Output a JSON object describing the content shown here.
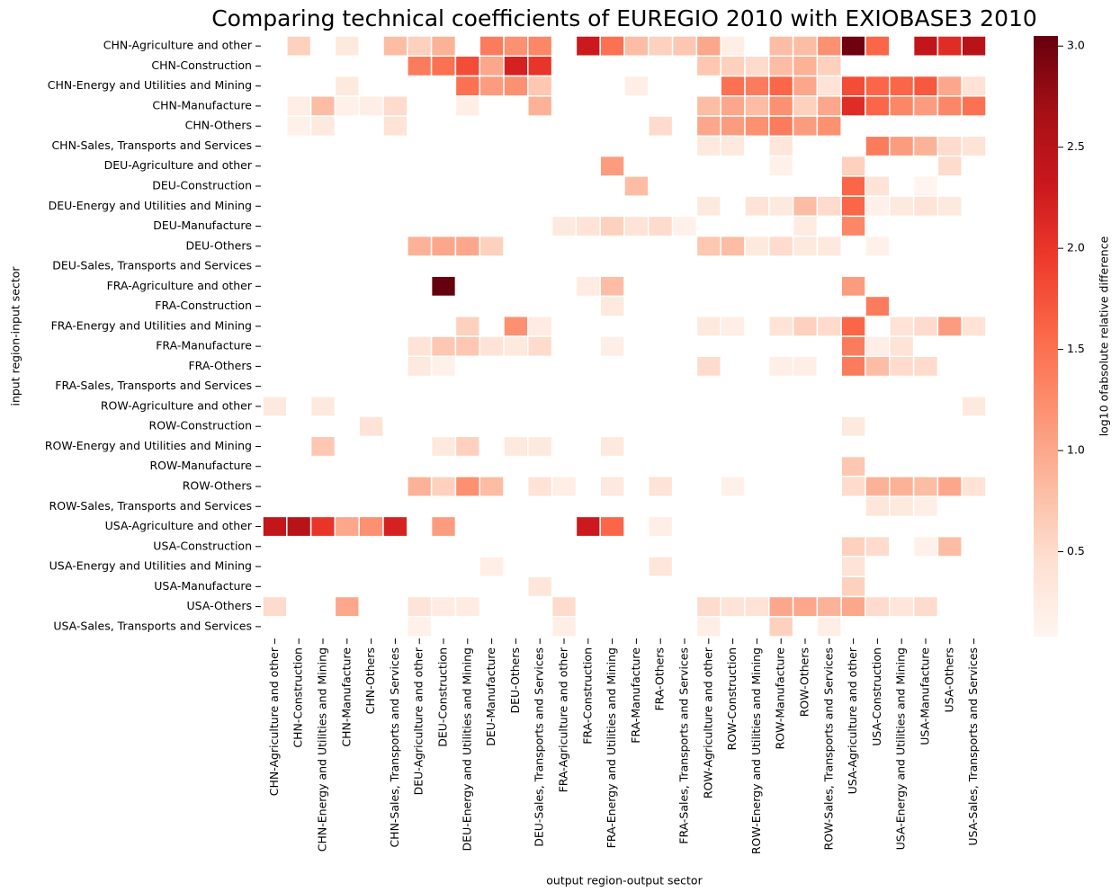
{
  "chart_data": {
    "type": "heatmap",
    "title": "Comparing technical coefficients of EUREGIO 2010 with EXIOBASE3 2010",
    "x_label": "output region-output sector",
    "y_label": "input region-input sector",
    "colorbar_label": "log10 ofabsolute relative difference",
    "categories": [
      "CHN-Agriculture and other",
      "CHN-Construction",
      "CHN-Energy and Utilities and Mining",
      "CHN-Manufacture",
      "CHN-Others",
      "CHN-Sales, Transports and Services",
      "DEU-Agriculture and other",
      "DEU-Construction",
      "DEU-Energy and Utilities and Mining",
      "DEU-Manufacture",
      "DEU-Others",
      "DEU-Sales, Transports and Services",
      "FRA-Agriculture and other",
      "FRA-Construction",
      "FRA-Energy and Utilities and Mining",
      "FRA-Manufacture",
      "FRA-Others",
      "FRA-Sales, Transports and Services",
      "ROW-Agriculture and other",
      "ROW-Construction",
      "ROW-Energy and Utilities and Mining",
      "ROW-Manufacture",
      "ROW-Others",
      "ROW-Sales, Transports and Services",
      "USA-Agriculture and other",
      "USA-Construction",
      "USA-Energy and Utilities and Mining",
      "USA-Manufacture",
      "USA-Others",
      "USA-Sales, Transports and Services"
    ],
    "zlim": [
      0.08,
      3.05
    ],
    "zticks": [
      0.5,
      {
        "value": 1,
        "label": "1.0"
      },
      1.5,
      {
        "value": 2,
        "label": "2.0"
      },
      2.5,
      {
        "value": 3,
        "label": "3.0"
      }
    ],
    "colormap": "Reds",
    "values": [
      [
        null,
        0.6,
        null,
        0.3,
        null,
        0.8,
        0.6,
        0.9,
        null,
        1.4,
        1.2,
        1.3,
        null,
        2.3,
        1.5,
        0.8,
        0.6,
        0.7,
        1.0,
        0.2,
        null,
        0.8,
        0.8,
        1.2,
        3.0,
        1.6,
        null,
        2.4,
        2.1,
        2.5
      ],
      [
        null,
        null,
        null,
        null,
        null,
        null,
        1.4,
        1.5,
        1.8,
        1.0,
        2.2,
        2.0,
        null,
        null,
        null,
        null,
        null,
        null,
        0.7,
        0.6,
        0.5,
        0.8,
        0.9,
        0.6,
        null,
        null,
        null,
        null,
        null,
        null
      ],
      [
        null,
        null,
        null,
        0.3,
        null,
        null,
        null,
        null,
        1.5,
        1.1,
        1.2,
        0.7,
        null,
        null,
        null,
        0.2,
        null,
        null,
        null,
        1.5,
        1.4,
        1.6,
        1.0,
        0.4,
        1.8,
        1.6,
        1.6,
        1.7,
        1.0,
        0.4
      ],
      [
        null,
        0.2,
        0.8,
        0.15,
        0.2,
        0.5,
        null,
        null,
        0.2,
        null,
        null,
        0.9,
        null,
        null,
        null,
        null,
        null,
        null,
        0.8,
        1.0,
        0.8,
        1.2,
        0.6,
        1.0,
        2.1,
        1.6,
        1.3,
        1.1,
        1.3,
        1.5
      ],
      [
        null,
        0.15,
        0.3,
        null,
        null,
        0.4,
        null,
        null,
        null,
        null,
        null,
        null,
        null,
        null,
        null,
        null,
        0.5,
        null,
        1.0,
        1.1,
        1.2,
        1.4,
        1.1,
        1.2,
        null,
        null,
        null,
        null,
        null,
        null
      ],
      [
        null,
        null,
        null,
        null,
        null,
        null,
        null,
        null,
        null,
        null,
        null,
        null,
        null,
        null,
        null,
        null,
        null,
        null,
        0.3,
        0.3,
        null,
        0.35,
        null,
        null,
        null,
        1.4,
        1.1,
        0.9,
        0.5,
        0.4
      ],
      [
        null,
        null,
        null,
        null,
        null,
        null,
        null,
        null,
        null,
        null,
        null,
        null,
        null,
        null,
        1.1,
        null,
        null,
        null,
        null,
        null,
        null,
        0.15,
        null,
        null,
        0.6,
        null,
        null,
        null,
        0.5,
        null
      ],
      [
        null,
        null,
        null,
        null,
        null,
        null,
        null,
        null,
        null,
        null,
        null,
        null,
        null,
        null,
        null,
        0.8,
        null,
        null,
        null,
        null,
        null,
        null,
        null,
        null,
        1.6,
        0.4,
        null,
        0.1,
        null,
        null
      ],
      [
        null,
        null,
        null,
        null,
        null,
        null,
        null,
        null,
        null,
        null,
        null,
        null,
        null,
        null,
        null,
        null,
        null,
        null,
        0.3,
        null,
        0.4,
        0.3,
        0.8,
        0.5,
        1.6,
        0.15,
        0.3,
        0.4,
        0.3,
        null
      ],
      [
        null,
        null,
        null,
        null,
        null,
        null,
        null,
        null,
        null,
        null,
        null,
        null,
        0.3,
        0.4,
        0.6,
        0.4,
        0.5,
        0.15,
        null,
        null,
        null,
        null,
        0.25,
        null,
        1.3,
        null,
        null,
        null,
        null,
        null
      ],
      [
        null,
        null,
        null,
        null,
        null,
        null,
        0.9,
        1.0,
        1.0,
        0.6,
        null,
        null,
        null,
        null,
        null,
        null,
        null,
        null,
        0.7,
        0.8,
        0.3,
        0.5,
        0.3,
        0.3,
        null,
        0.15,
        null,
        null,
        null,
        null
      ],
      [
        null,
        null,
        null,
        null,
        null,
        null,
        null,
        null,
        null,
        null,
        null,
        null,
        null,
        null,
        null,
        null,
        null,
        null,
        null,
        null,
        null,
        null,
        null,
        null,
        null,
        null,
        null,
        null,
        null,
        null
      ],
      [
        null,
        null,
        null,
        null,
        null,
        null,
        null,
        3.05,
        null,
        null,
        null,
        null,
        null,
        0.25,
        0.8,
        null,
        null,
        null,
        null,
        null,
        null,
        null,
        null,
        null,
        1.1,
        null,
        null,
        null,
        null,
        null
      ],
      [
        null,
        null,
        null,
        null,
        null,
        null,
        null,
        null,
        null,
        null,
        null,
        null,
        null,
        null,
        0.3,
        null,
        null,
        null,
        null,
        null,
        null,
        null,
        null,
        null,
        null,
        1.4,
        null,
        null,
        null,
        null
      ],
      [
        null,
        null,
        null,
        null,
        null,
        null,
        null,
        null,
        0.6,
        null,
        1.2,
        0.25,
        null,
        null,
        null,
        null,
        null,
        null,
        0.3,
        0.2,
        null,
        0.4,
        0.6,
        0.5,
        1.6,
        null,
        0.4,
        0.5,
        1.1,
        0.4
      ],
      [
        null,
        null,
        null,
        null,
        null,
        null,
        0.4,
        0.7,
        0.7,
        0.4,
        0.3,
        0.5,
        null,
        null,
        0.2,
        null,
        null,
        null,
        null,
        null,
        null,
        null,
        null,
        null,
        1.4,
        0.2,
        0.4,
        null,
        null,
        null
      ],
      [
        null,
        null,
        null,
        null,
        null,
        null,
        0.3,
        0.15,
        null,
        null,
        null,
        null,
        null,
        null,
        null,
        null,
        null,
        null,
        0.5,
        null,
        null,
        0.2,
        0.2,
        null,
        1.4,
        0.8,
        0.5,
        0.5,
        null,
        null
      ],
      [
        null,
        null,
        null,
        null,
        null,
        null,
        null,
        null,
        null,
        null,
        null,
        null,
        null,
        null,
        null,
        null,
        null,
        null,
        null,
        null,
        null,
        null,
        null,
        null,
        null,
        null,
        null,
        null,
        null,
        null
      ],
      [
        0.3,
        null,
        0.3,
        null,
        null,
        null,
        null,
        null,
        null,
        null,
        null,
        null,
        null,
        null,
        null,
        null,
        null,
        null,
        null,
        null,
        null,
        null,
        null,
        null,
        null,
        null,
        null,
        null,
        null,
        0.3
      ],
      [
        null,
        null,
        null,
        null,
        0.4,
        null,
        null,
        null,
        null,
        null,
        null,
        null,
        null,
        null,
        null,
        null,
        null,
        null,
        null,
        null,
        null,
        null,
        null,
        null,
        0.3,
        null,
        null,
        null,
        null,
        null
      ],
      [
        null,
        null,
        0.7,
        null,
        null,
        null,
        null,
        0.3,
        0.6,
        null,
        0.3,
        0.3,
        null,
        null,
        0.3,
        null,
        null,
        null,
        null,
        null,
        null,
        null,
        null,
        null,
        null,
        null,
        null,
        null,
        null,
        null
      ],
      [
        null,
        null,
        null,
        null,
        null,
        null,
        null,
        null,
        null,
        null,
        null,
        null,
        null,
        null,
        null,
        null,
        null,
        null,
        null,
        null,
        null,
        null,
        null,
        null,
        0.7,
        null,
        null,
        null,
        null,
        null
      ],
      [
        null,
        null,
        null,
        null,
        null,
        null,
        0.9,
        0.6,
        1.2,
        0.8,
        null,
        0.4,
        0.2,
        null,
        0.3,
        null,
        0.4,
        null,
        null,
        0.15,
        null,
        null,
        null,
        null,
        0.5,
        0.9,
        0.9,
        0.8,
        1.0,
        0.4
      ],
      [
        null,
        null,
        null,
        null,
        null,
        null,
        null,
        null,
        null,
        null,
        null,
        null,
        null,
        null,
        null,
        null,
        null,
        null,
        null,
        null,
        null,
        null,
        null,
        null,
        null,
        0.35,
        0.3,
        0.2,
        null,
        null
      ],
      [
        2.4,
        2.5,
        2.0,
        1.0,
        1.2,
        2.2,
        null,
        1.1,
        null,
        null,
        null,
        null,
        null,
        2.3,
        1.6,
        null,
        0.2,
        null,
        null,
        null,
        null,
        null,
        null,
        null,
        null,
        null,
        null,
        null,
        null,
        null
      ],
      [
        null,
        null,
        null,
        null,
        null,
        null,
        null,
        null,
        null,
        null,
        null,
        null,
        null,
        null,
        null,
        null,
        null,
        null,
        null,
        null,
        null,
        null,
        null,
        null,
        0.6,
        0.5,
        null,
        0.15,
        0.8,
        null
      ],
      [
        null,
        null,
        null,
        null,
        null,
        null,
        null,
        null,
        null,
        0.2,
        null,
        null,
        null,
        null,
        null,
        null,
        0.35,
        null,
        null,
        null,
        null,
        null,
        null,
        null,
        0.4,
        null,
        null,
        null,
        null,
        null
      ],
      [
        null,
        null,
        null,
        null,
        null,
        null,
        null,
        null,
        null,
        null,
        null,
        0.35,
        null,
        null,
        null,
        null,
        null,
        null,
        null,
        null,
        null,
        null,
        null,
        null,
        0.6,
        null,
        null,
        null,
        null,
        null
      ],
      [
        0.5,
        null,
        null,
        1.0,
        null,
        null,
        0.4,
        0.25,
        0.25,
        null,
        null,
        null,
        0.5,
        null,
        null,
        null,
        null,
        null,
        0.5,
        0.4,
        0.4,
        1.0,
        1.0,
        0.9,
        1.0,
        0.5,
        0.35,
        0.5,
        null,
        null
      ],
      [
        null,
        null,
        null,
        null,
        null,
        null,
        0.15,
        null,
        null,
        null,
        null,
        null,
        0.2,
        null,
        null,
        null,
        null,
        null,
        0.2,
        null,
        null,
        0.6,
        null,
        0.2,
        null,
        null,
        null,
        null,
        null,
        null
      ]
    ]
  }
}
